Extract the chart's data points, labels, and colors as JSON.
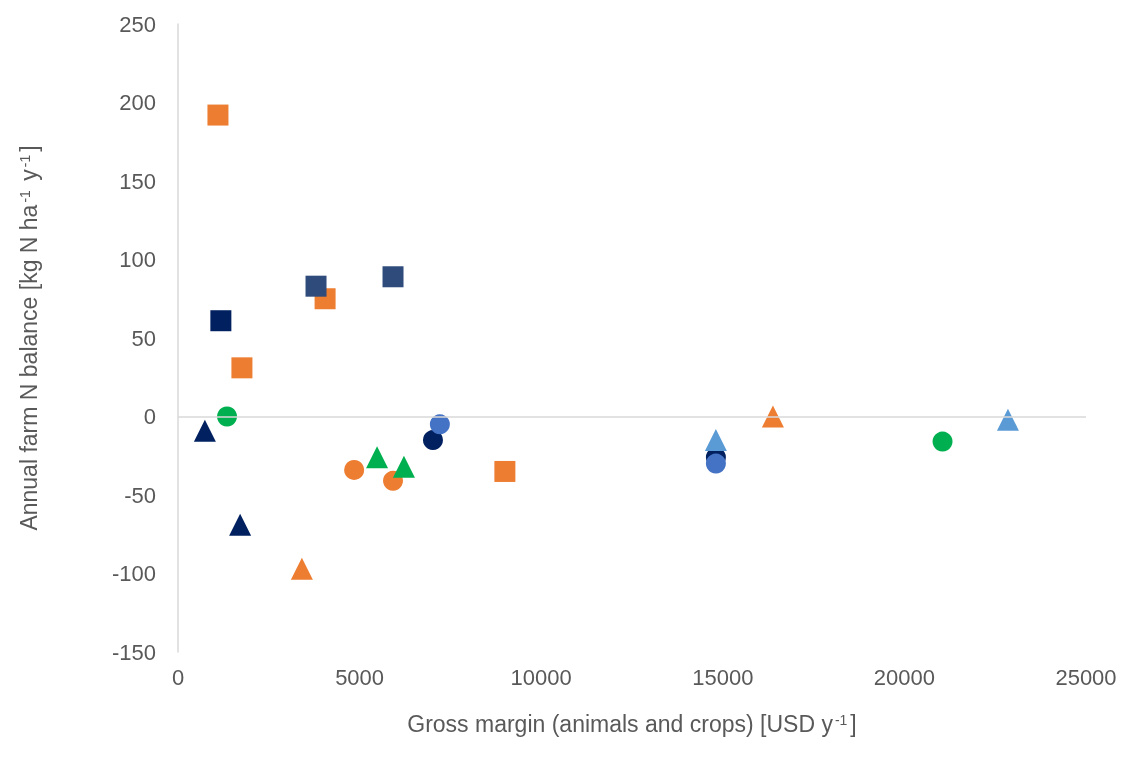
{
  "chart_data": {
    "type": "scatter",
    "xlabel": "Gross margin (animals and crops) [USD y$^{-1}$]",
    "ylabel": "Annual farm N balance [kg N ha$^{-1}$ y$^{-1}$]",
    "xlim": [
      0,
      25000
    ],
    "xticks": [
      0,
      5000,
      10000,
      15000,
      20000,
      25000
    ],
    "ylim": [
      -150,
      250
    ],
    "yticks": [
      -150,
      -100,
      -50,
      0,
      50,
      100,
      150,
      200,
      250
    ],
    "grid": false,
    "legend": false,
    "ref_lines": [
      {
        "axis": "y",
        "value": 0,
        "color": "#d9d9d9"
      }
    ],
    "series": [
      {
        "color": "#ed7d31",
        "marker": "square",
        "x": [
          1100,
          4050,
          1760,
          9000
        ],
        "values": [
          192,
          75,
          31,
          -35
        ]
      },
      {
        "color": "#002060",
        "marker": "square",
        "x": [
          1180
        ],
        "values": [
          61
        ]
      },
      {
        "color": "#2f4b7c",
        "marker": "square",
        "x": [
          3800,
          5920
        ],
        "values": [
          83,
          89
        ]
      },
      {
        "color": "#00b050",
        "marker": "circle",
        "x": [
          1350,
          21050
        ],
        "values": [
          0,
          -16
        ]
      },
      {
        "color": "#ed7d31",
        "marker": "circle",
        "x": [
          4850,
          5920
        ],
        "values": [
          -34,
          -41
        ]
      },
      {
        "color": "#002060",
        "marker": "circle",
        "x": [
          7020,
          14810
        ],
        "values": [
          -15,
          -26
        ]
      },
      {
        "color": "#4472c4",
        "marker": "circle",
        "x": [
          7210,
          14810
        ],
        "values": [
          -5,
          -30
        ]
      },
      {
        "color": "#002060",
        "marker": "triangle",
        "x": [
          740,
          1710
        ],
        "values": [
          -9,
          -69
        ]
      },
      {
        "color": "#ed7d31",
        "marker": "triangle",
        "x": [
          3410,
          16380
        ],
        "values": [
          -97,
          0
        ]
      },
      {
        "color": "#00b050",
        "marker": "triangle",
        "x": [
          5480,
          6220
        ],
        "values": [
          -26,
          -32
        ]
      },
      {
        "color": "#5b9bd5",
        "marker": "triangle",
        "x": [
          14810,
          22850
        ],
        "values": [
          -15,
          -2
        ]
      }
    ]
  }
}
